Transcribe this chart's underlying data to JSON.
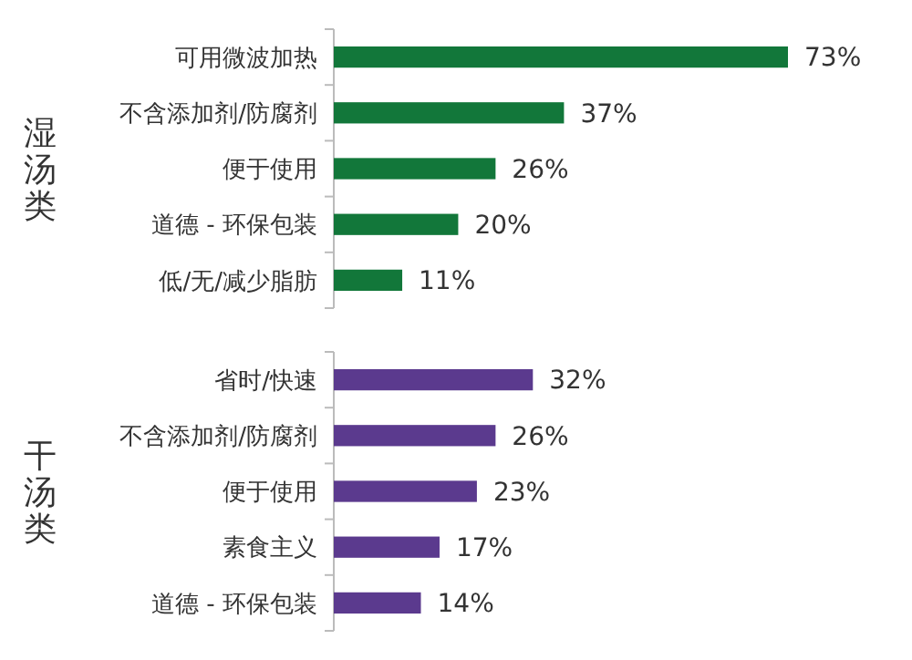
{
  "chart_data": [
    {
      "type": "bar",
      "orientation": "horizontal",
      "ylabel": "湿汤类",
      "categories": [
        "可用微波加热",
        "不含添加剂/防腐剂",
        "便于使用",
        "道德 - 环保包装",
        "低/无/减少脂肪"
      ],
      "values": [
        73,
        37,
        26,
        20,
        11
      ],
      "color": "#12773a",
      "value_labels": [
        "73%",
        "37%",
        "26%",
        "20%",
        "11%"
      ],
      "tick_labels": "y"
    },
    {
      "type": "bar",
      "orientation": "horizontal",
      "ylabel": "干汤类",
      "categories": [
        "省时/快速",
        "不含添加剂/防腐剂",
        "便于使用",
        "素食主义",
        "道德 - 环保包装"
      ],
      "values": [
        32,
        26,
        23,
        17,
        14
      ],
      "color": "#5b3a8e",
      "value_labels": [
        "32%",
        "26%",
        "23%",
        "17%",
        "14%"
      ],
      "tick_labels": "y"
    }
  ]
}
